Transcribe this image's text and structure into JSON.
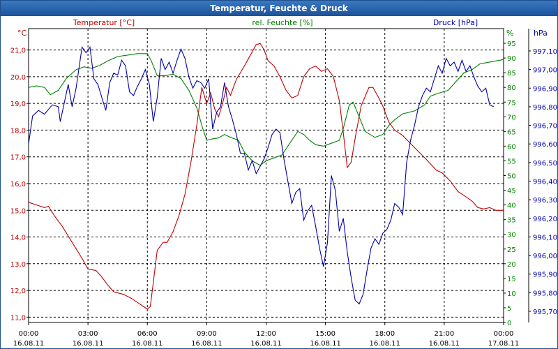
{
  "window": {
    "title": "Temperatur, Feuchte & Druck"
  },
  "chart_data": {
    "type": "line",
    "title": "Temperatur, Feuchte & Druck",
    "x_ticks": [
      "00:00\n16.08.11",
      "03:00\n16.08.11",
      "06:00\n16.08.11",
      "09:00\n16.08.11",
      "12:00\n16.08.11",
      "15:00\n16.08.11",
      "18:00\n16.08.11",
      "21:00\n16.08.11",
      "00:00\n17.08.11"
    ],
    "xlim_hours": [
      0,
      24
    ],
    "axes": {
      "left": {
        "unit": "°C",
        "label": "Temperatur [°C]",
        "ylim": [
          10.8,
          21.8
        ],
        "ticks": [
          "11,0",
          "12,0",
          "13,0",
          "14,0",
          "15,0",
          "16,0",
          "17,0",
          "18,0",
          "19,0",
          "20,0",
          "21,0"
        ],
        "color": "#c00000"
      },
      "right1": {
        "unit": "%",
        "label": "rel. Feuchte [%]",
        "ylim": [
          0,
          100
        ],
        "ticks": [
          "0",
          "5",
          "10",
          "15",
          "20",
          "25",
          "30",
          "35",
          "40",
          "45",
          "50",
          "55",
          "60",
          "65",
          "70",
          "75",
          "80",
          "85",
          "90",
          "95"
        ],
        "color": "#008000"
      },
      "right2": {
        "unit": "hPa",
        "label": "Druck [hPa]",
        "ylim": [
          995.64,
          997.22
        ],
        "ticks": [
          "995,70",
          "995,80",
          "995,90",
          "996,00",
          "996,10",
          "996,20",
          "996,30",
          "996,40",
          "996,50",
          "996,60",
          "996,70",
          "996,80",
          "996,90",
          "997,00",
          "997,10"
        ],
        "color": "#0000aa"
      }
    },
    "grid": true,
    "series": [
      {
        "name": "Temperatur [°C]",
        "axis": "left",
        "color": "#c00000",
        "points": [
          [
            0,
            15.3
          ],
          [
            0.4,
            15.2
          ],
          [
            0.8,
            15.1
          ],
          [
            1.0,
            15.15
          ],
          [
            1.3,
            14.8
          ],
          [
            1.7,
            14.4
          ],
          [
            2.2,
            13.8
          ],
          [
            2.7,
            13.2
          ],
          [
            3.0,
            12.8
          ],
          [
            3.4,
            12.75
          ],
          [
            3.7,
            12.5
          ],
          [
            4.0,
            12.2
          ],
          [
            4.3,
            11.95
          ],
          [
            4.8,
            11.85
          ],
          [
            5.2,
            11.7
          ],
          [
            5.6,
            11.5
          ],
          [
            5.9,
            11.35
          ],
          [
            6.0,
            11.3
          ],
          [
            6.15,
            11.4
          ],
          [
            6.3,
            12.3
          ],
          [
            6.5,
            13.5
          ],
          [
            6.8,
            13.8
          ],
          [
            7.0,
            13.8
          ],
          [
            7.3,
            14.2
          ],
          [
            7.6,
            14.8
          ],
          [
            7.9,
            15.6
          ],
          [
            8.2,
            16.8
          ],
          [
            8.5,
            18.2
          ],
          [
            8.75,
            19.6
          ],
          [
            9.0,
            19.0
          ],
          [
            9.2,
            19.4
          ],
          [
            9.4,
            18.8
          ],
          [
            9.6,
            18.5
          ],
          [
            9.8,
            19.0
          ],
          [
            10.0,
            19.6
          ],
          [
            10.2,
            19.3
          ],
          [
            10.5,
            19.9
          ],
          [
            10.9,
            20.4
          ],
          [
            11.2,
            20.8
          ],
          [
            11.5,
            21.2
          ],
          [
            11.7,
            21.25
          ],
          [
            11.9,
            21.0
          ],
          [
            12.1,
            20.6
          ],
          [
            12.4,
            20.4
          ],
          [
            12.7,
            20.0
          ],
          [
            13.0,
            19.5
          ],
          [
            13.3,
            19.2
          ],
          [
            13.6,
            19.3
          ],
          [
            13.9,
            20.0
          ],
          [
            14.2,
            20.3
          ],
          [
            14.5,
            20.4
          ],
          [
            14.8,
            20.2
          ],
          [
            15.1,
            20.3
          ],
          [
            15.4,
            20.0
          ],
          [
            15.7,
            19.1
          ],
          [
            15.9,
            17.9
          ],
          [
            16.1,
            16.6
          ],
          [
            16.3,
            16.8
          ],
          [
            16.5,
            17.7
          ],
          [
            16.8,
            18.9
          ],
          [
            17.2,
            19.6
          ],
          [
            17.4,
            19.6
          ],
          [
            17.7,
            19.2
          ],
          [
            17.9,
            18.9
          ],
          [
            18.2,
            18.3
          ],
          [
            18.5,
            18.0
          ],
          [
            18.9,
            17.8
          ],
          [
            19.3,
            17.5
          ],
          [
            19.7,
            17.2
          ],
          [
            20.1,
            16.9
          ],
          [
            20.6,
            16.5
          ],
          [
            20.9,
            16.4
          ],
          [
            21.3,
            16.1
          ],
          [
            21.7,
            15.7
          ],
          [
            22.1,
            15.5
          ],
          [
            22.4,
            15.35
          ],
          [
            22.7,
            15.1
          ],
          [
            23.0,
            15.05
          ],
          [
            23.3,
            15.1
          ],
          [
            23.6,
            15.0
          ],
          [
            24.0,
            15.0
          ]
        ]
      },
      {
        "name": "rel. Feuchte [%]",
        "axis": "right1",
        "color": "#008000",
        "points": [
          [
            0,
            80
          ],
          [
            0.4,
            80.5
          ],
          [
            0.8,
            80
          ],
          [
            1.1,
            77.5
          ],
          [
            1.5,
            79
          ],
          [
            1.9,
            83
          ],
          [
            2.4,
            86
          ],
          [
            2.8,
            87
          ],
          [
            3.2,
            86.5
          ],
          [
            3.6,
            87.5
          ],
          [
            4.0,
            89
          ],
          [
            4.5,
            90.5
          ],
          [
            5.0,
            91
          ],
          [
            5.5,
            91.5
          ],
          [
            6.0,
            91.5
          ],
          [
            6.2,
            89
          ],
          [
            6.5,
            84
          ],
          [
            6.9,
            84
          ],
          [
            7.3,
            84.5
          ],
          [
            7.7,
            83
          ],
          [
            8.1,
            79
          ],
          [
            8.5,
            73
          ],
          [
            8.8,
            66
          ],
          [
            9.0,
            62
          ],
          [
            9.3,
            62.5
          ],
          [
            9.6,
            62.8
          ],
          [
            9.9,
            64
          ],
          [
            10.2,
            63
          ],
          [
            10.6,
            62
          ],
          [
            10.9,
            58
          ],
          [
            11.3,
            55
          ],
          [
            11.7,
            53.5
          ],
          [
            12.0,
            55
          ],
          [
            12.4,
            56
          ],
          [
            12.8,
            57
          ],
          [
            13.2,
            61
          ],
          [
            13.6,
            65
          ],
          [
            13.9,
            64
          ],
          [
            14.2,
            62
          ],
          [
            14.5,
            60.5
          ],
          [
            14.9,
            60
          ],
          [
            15.3,
            61
          ],
          [
            15.7,
            62
          ],
          [
            15.9,
            66
          ],
          [
            16.2,
            74
          ],
          [
            16.4,
            75
          ],
          [
            16.7,
            70
          ],
          [
            17.0,
            65
          ],
          [
            17.5,
            63
          ],
          [
            17.9,
            64
          ],
          [
            18.2,
            67
          ],
          [
            18.5,
            69
          ],
          [
            18.9,
            71
          ],
          [
            19.5,
            72
          ],
          [
            20.0,
            74
          ],
          [
            20.3,
            77
          ],
          [
            20.7,
            78
          ],
          [
            21.2,
            79
          ],
          [
            21.6,
            82
          ],
          [
            22.0,
            85
          ],
          [
            22.4,
            86
          ],
          [
            22.8,
            88
          ],
          [
            23.2,
            88.5
          ],
          [
            23.6,
            89
          ],
          [
            24.0,
            89.5
          ]
        ]
      },
      {
        "name": "Druck [hPa]",
        "axis": "right2",
        "color": "#0000aa",
        "points": [
          [
            0,
            996.6
          ],
          [
            0.2,
            996.75
          ],
          [
            0.5,
            996.78
          ],
          [
            0.8,
            996.76
          ],
          [
            1.2,
            996.81
          ],
          [
            1.5,
            996.8
          ],
          [
            1.6,
            996.72
          ],
          [
            1.8,
            996.82
          ],
          [
            2.0,
            996.92
          ],
          [
            2.2,
            996.8
          ],
          [
            2.4,
            996.9
          ],
          [
            2.7,
            997.12
          ],
          [
            2.9,
            997.09
          ],
          [
            3.1,
            997.12
          ],
          [
            3.3,
            996.95
          ],
          [
            3.5,
            996.92
          ],
          [
            3.7,
            996.85
          ],
          [
            3.9,
            996.78
          ],
          [
            4.1,
            996.93
          ],
          [
            4.3,
            996.98
          ],
          [
            4.5,
            996.97
          ],
          [
            4.7,
            997.05
          ],
          [
            4.9,
            997.02
          ],
          [
            5.1,
            996.88
          ],
          [
            5.3,
            996.86
          ],
          [
            5.5,
            996.91
          ],
          [
            5.7,
            996.95
          ],
          [
            5.9,
            997.0
          ],
          [
            6.1,
            996.92
          ],
          [
            6.3,
            996.72
          ],
          [
            6.5,
            996.85
          ],
          [
            6.7,
            997.06
          ],
          [
            6.9,
            997.0
          ],
          [
            7.1,
            997.04
          ],
          [
            7.3,
            996.98
          ],
          [
            7.5,
            997.05
          ],
          [
            7.7,
            997.11
          ],
          [
            7.9,
            997.06
          ],
          [
            8.1,
            996.96
          ],
          [
            8.3,
            996.9
          ],
          [
            8.5,
            996.94
          ],
          [
            8.7,
            996.93
          ],
          [
            8.9,
            996.9
          ],
          [
            9.1,
            996.95
          ],
          [
            9.3,
            996.68
          ],
          [
            9.5,
            996.77
          ],
          [
            9.7,
            996.8
          ],
          [
            9.9,
            996.93
          ],
          [
            10.1,
            996.8
          ],
          [
            10.3,
            996.73
          ],
          [
            10.5,
            996.65
          ],
          [
            10.7,
            996.55
          ],
          [
            10.9,
            996.55
          ],
          [
            11.1,
            996.46
          ],
          [
            11.3,
            996.51
          ],
          [
            11.5,
            996.44
          ],
          [
            11.7,
            996.48
          ],
          [
            11.9,
            996.52
          ],
          [
            12.1,
            996.58
          ],
          [
            12.3,
            996.65
          ],
          [
            12.5,
            996.68
          ],
          [
            12.7,
            996.66
          ],
          [
            12.9,
            996.52
          ],
          [
            13.1,
            996.4
          ],
          [
            13.3,
            996.28
          ],
          [
            13.5,
            996.34
          ],
          [
            13.7,
            996.36
          ],
          [
            13.9,
            996.19
          ],
          [
            14.1,
            996.24
          ],
          [
            14.3,
            996.27
          ],
          [
            14.5,
            996.16
          ],
          [
            14.7,
            996.04
          ],
          [
            14.9,
            995.94
          ],
          [
            15.1,
            996.07
          ],
          [
            15.3,
            996.43
          ],
          [
            15.5,
            996.35
          ],
          [
            15.7,
            996.13
          ],
          [
            15.9,
            996.2
          ],
          [
            16.1,
            996.02
          ],
          [
            16.3,
            995.88
          ],
          [
            16.5,
            995.76
          ],
          [
            16.7,
            995.74
          ],
          [
            16.9,
            995.79
          ],
          [
            17.1,
            995.92
          ],
          [
            17.3,
            996.04
          ],
          [
            17.5,
            996.09
          ],
          [
            17.7,
            996.06
          ],
          [
            17.9,
            996.12
          ],
          [
            18.1,
            996.14
          ],
          [
            18.3,
            996.19
          ],
          [
            18.5,
            996.28
          ],
          [
            18.7,
            996.26
          ],
          [
            18.9,
            996.22
          ],
          [
            19.1,
            996.5
          ],
          [
            19.3,
            996.62
          ],
          [
            19.5,
            996.7
          ],
          [
            19.7,
            996.8
          ],
          [
            19.9,
            996.86
          ],
          [
            20.1,
            996.9
          ],
          [
            20.3,
            996.88
          ],
          [
            20.5,
            996.95
          ],
          [
            20.7,
            997.02
          ],
          [
            20.9,
            996.98
          ],
          [
            21.1,
            997.06
          ],
          [
            21.3,
            997.02
          ],
          [
            21.5,
            997.04
          ],
          [
            21.7,
            996.99
          ],
          [
            21.9,
            997.05
          ],
          [
            22.1,
            996.99
          ],
          [
            22.3,
            997.02
          ],
          [
            22.5,
            996.96
          ],
          [
            22.7,
            996.91
          ],
          [
            22.9,
            996.88
          ],
          [
            23.1,
            996.9
          ],
          [
            23.3,
            996.81
          ],
          [
            23.5,
            996.8
          ]
        ]
      }
    ]
  }
}
